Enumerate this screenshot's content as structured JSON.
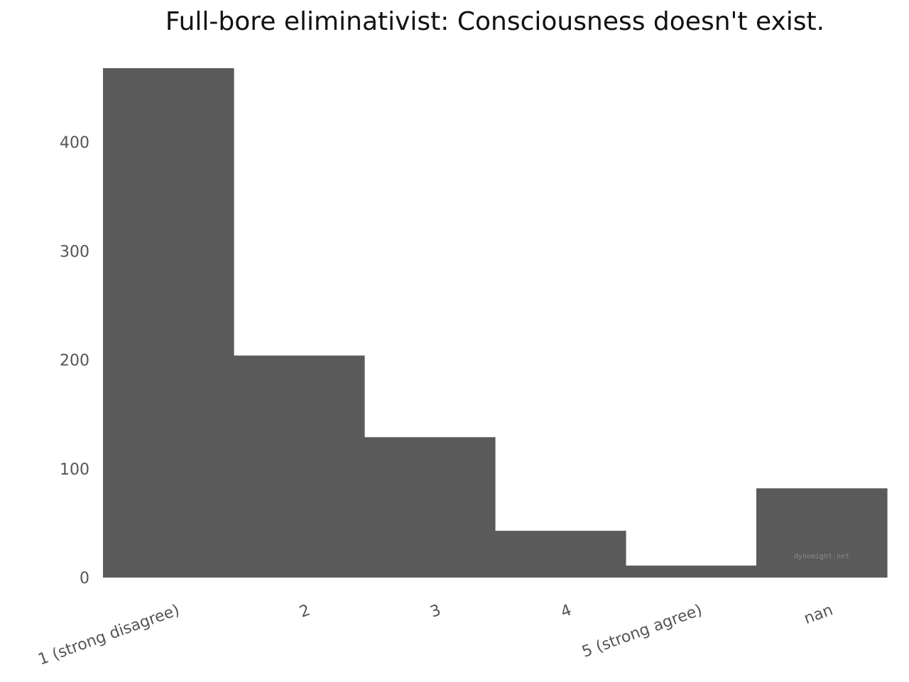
{
  "chart_data": {
    "type": "bar",
    "title": "Full-bore eliminativist: Consciousness doesn't exist.",
    "categories": [
      "1 (strong disagree)",
      "2",
      "3",
      "4",
      "5 (strong agree)",
      "nan"
    ],
    "values": [
      468,
      204,
      129,
      43,
      11,
      82
    ],
    "ylim": [
      0,
      468
    ],
    "yticks": [
      0,
      100,
      200,
      300,
      400
    ],
    "xlabel": "",
    "ylabel": "",
    "grid": false,
    "bar_color": "#5a5a5a",
    "watermark": "dynomight.net"
  }
}
